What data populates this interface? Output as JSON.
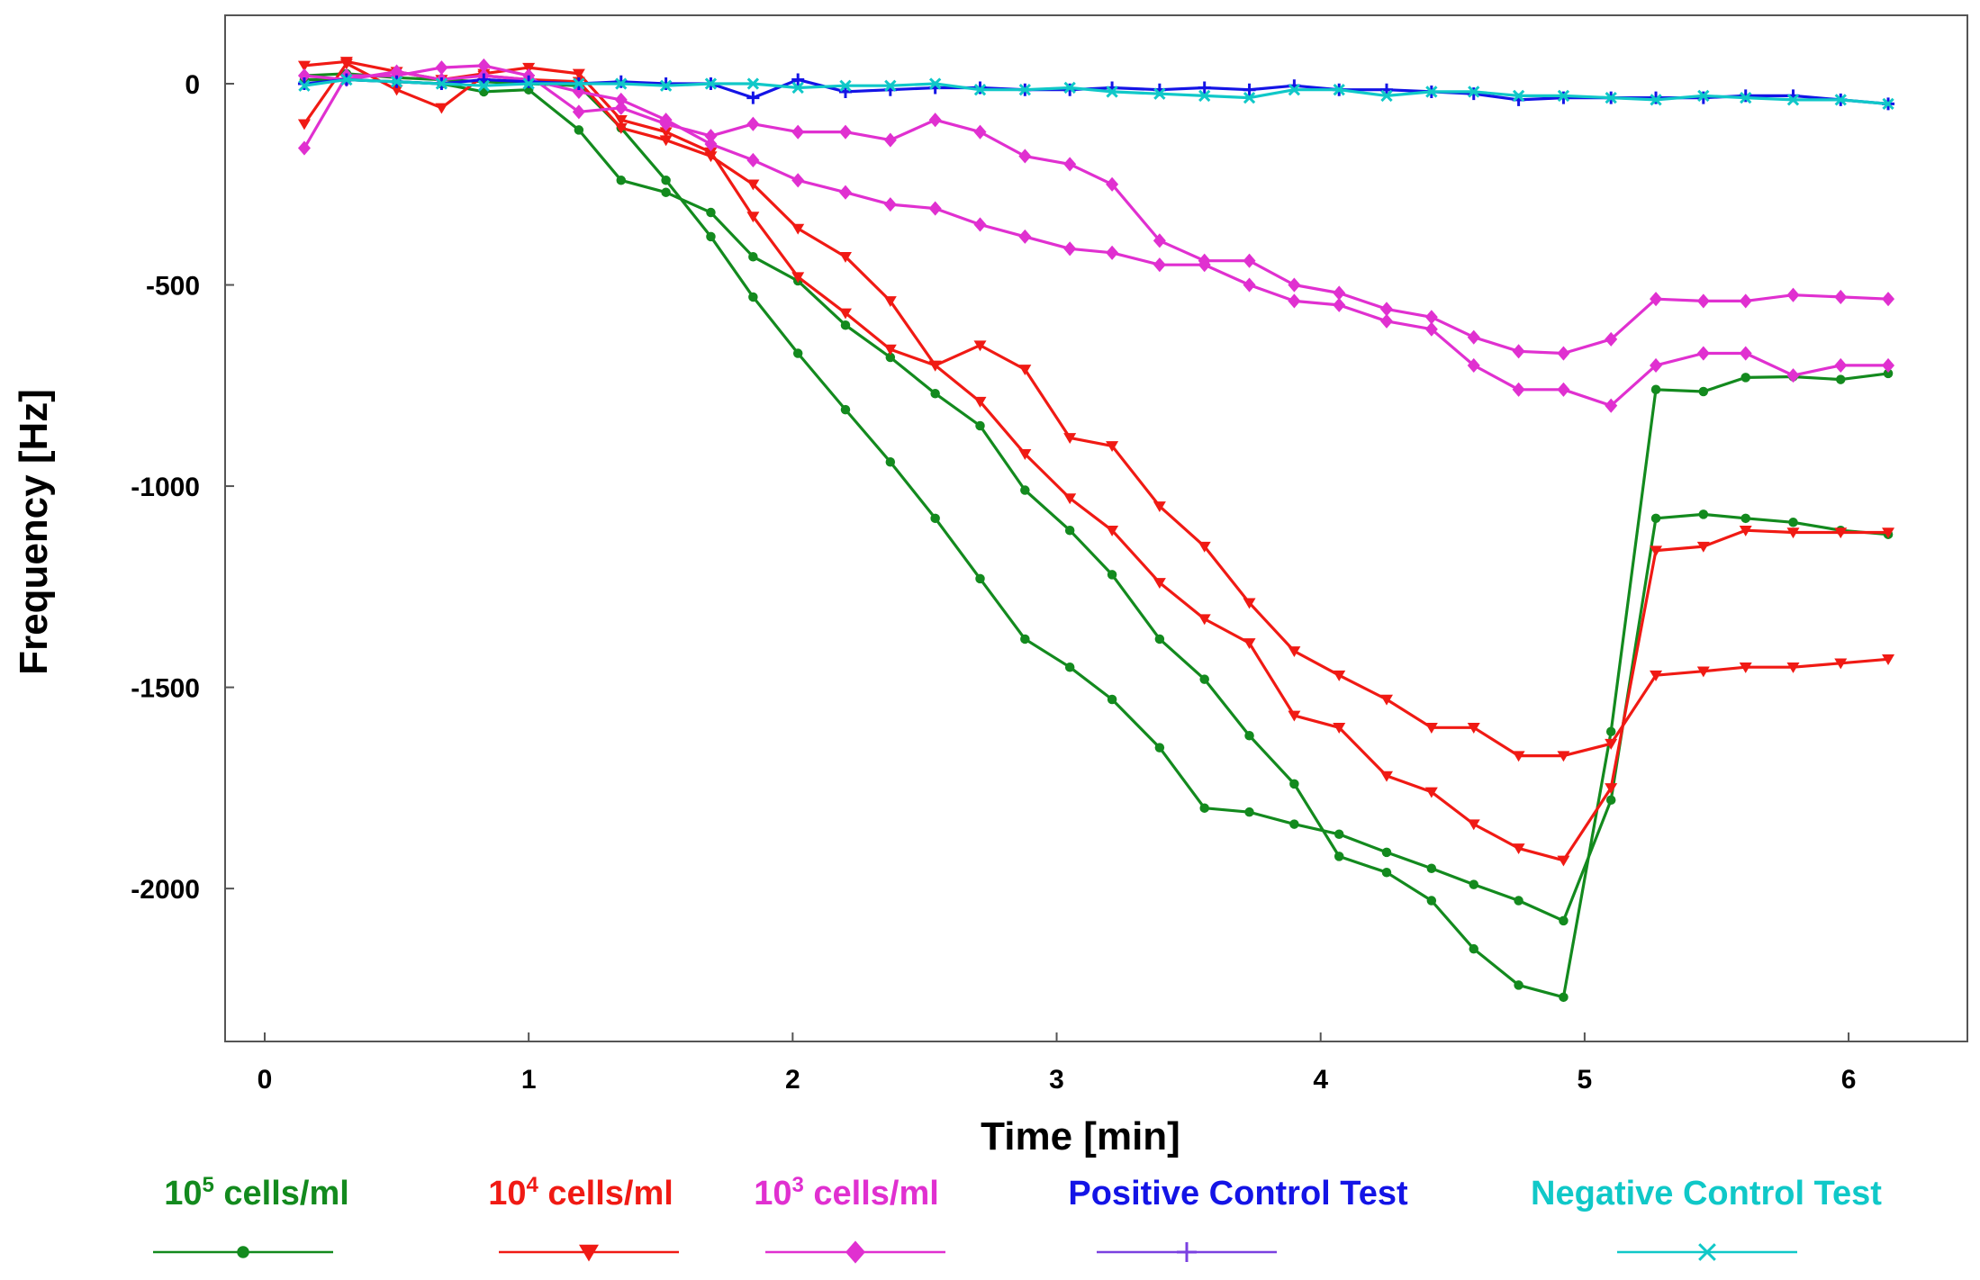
{
  "chart_data": {
    "type": "line",
    "xlabel": "Time [min]",
    "ylabel": "Frequency [Hz]",
    "xlim": [
      -0.15,
      6.45
    ],
    "ylim": [
      -2380,
      170
    ],
    "xticks": [
      "0",
      "1",
      "2",
      "3",
      "4",
      "5",
      "6"
    ],
    "xtick_values": [
      0,
      1,
      2,
      3,
      4,
      5,
      6
    ],
    "yticks": [
      "0",
      "-500",
      "-1000",
      "-1500",
      "-2000"
    ],
    "ytick_values": [
      0,
      -500,
      -1000,
      -1500,
      -2000
    ],
    "grid": false,
    "legend_position": "bottom",
    "legend": [
      {
        "label_base": "10",
        "label_sup": "5",
        "label_rest": " cells/ml",
        "color": "#138a1e",
        "line_color": "#138a1e",
        "marker": "circle"
      },
      {
        "label_base": "10",
        "label_sup": "4",
        "label_rest": " cells/ml",
        "color": "#f01a14",
        "line_color": "#f01a14",
        "marker": "triangle-down"
      },
      {
        "label_base": "10",
        "label_sup": "3",
        "label_rest": " cells/ml",
        "color": "#e030d0",
        "line_color": "#e030d0",
        "marker": "diamond"
      },
      {
        "label_base": "Positive Control Test",
        "label_sup": "",
        "label_rest": "",
        "color": "#1414e6",
        "line_color": "#7a40e0",
        "marker": "plus"
      },
      {
        "label_base": "Negative Control Test",
        "label_sup": "",
        "label_rest": "",
        "color": "#10c8c8",
        "line_color": "#10c8c8",
        "marker": "x"
      }
    ],
    "x": [
      0.15,
      0.31,
      0.5,
      0.67,
      0.83,
      1.0,
      1.19,
      1.35,
      1.52,
      1.69,
      1.85,
      2.02,
      2.2,
      2.37,
      2.54,
      2.71,
      2.88,
      3.05,
      3.21,
      3.39,
      3.56,
      3.73,
      3.9,
      4.07,
      4.25,
      4.42,
      4.58,
      4.75,
      4.92,
      5.1,
      5.27,
      5.45,
      5.61,
      5.79,
      5.97,
      6.15
    ],
    "series": [
      {
        "name": "10^5 cells/ml A",
        "group": 0,
        "values": [
          10,
          10,
          5,
          0,
          -20,
          -15,
          -115,
          -240,
          -270,
          -320,
          -430,
          -490,
          -600,
          -680,
          -770,
          -850,
          -1010,
          -1110,
          -1220,
          -1380,
          -1480,
          -1620,
          -1740,
          -1920,
          -1960,
          -2030,
          -2150,
          -2240,
          -2270,
          -1610,
          -760,
          -765,
          -730,
          -728,
          -735,
          -720
        ]
      },
      {
        "name": "10^5 cells/ml B",
        "group": 0,
        "values": [
          20,
          25,
          15,
          10,
          5,
          0,
          -5,
          -110,
          -240,
          -380,
          -530,
          -670,
          -810,
          -940,
          -1080,
          -1230,
          -1380,
          -1450,
          -1530,
          -1650,
          -1800,
          -1810,
          -1840,
          -1865,
          -1910,
          -1950,
          -1990,
          -2030,
          -2080,
          -1780,
          -1080,
          -1070,
          -1080,
          -1090,
          -1110,
          -1120
        ]
      },
      {
        "name": "10^4 cells/ml A",
        "group": 1,
        "values": [
          -100,
          50,
          -15,
          -60,
          20,
          10,
          5,
          -110,
          -140,
          -180,
          -250,
          -360,
          -430,
          -540,
          -700,
          -650,
          -710,
          -880,
          -900,
          -1050,
          -1150,
          -1290,
          -1410,
          -1470,
          -1530,
          -1600,
          -1600,
          -1670,
          -1670,
          -1640,
          -1470,
          -1460,
          -1450,
          -1450,
          -1440,
          -1430
        ]
      },
      {
        "name": "10^4 cells/ml B",
        "group": 1,
        "values": [
          45,
          55,
          30,
          10,
          25,
          40,
          25,
          -90,
          -120,
          -170,
          -330,
          -480,
          -570,
          -660,
          -700,
          -790,
          -920,
          -1030,
          -1110,
          -1240,
          -1330,
          -1390,
          -1570,
          -1600,
          -1720,
          -1760,
          -1840,
          -1900,
          -1930,
          -1750,
          -1160,
          -1150,
          -1110,
          -1115,
          -1115,
          -1115
        ]
      },
      {
        "name": "10^3 cells/ml A",
        "group": 2,
        "values": [
          -160,
          20,
          20,
          40,
          45,
          20,
          -70,
          -60,
          -100,
          -130,
          -100,
          -120,
          -120,
          -140,
          -90,
          -120,
          -180,
          -200,
          -250,
          -390,
          -440,
          -440,
          -500,
          -520,
          -560,
          -580,
          -630,
          -665,
          -670,
          -635,
          -535,
          -540,
          -540,
          -525,
          -530,
          -535
        ]
      },
      {
        "name": "10^3 cells/ml B",
        "group": 2,
        "values": [
          20,
          10,
          30,
          10,
          20,
          10,
          -20,
          -40,
          -90,
          -150,
          -190,
          -240,
          -270,
          -300,
          -310,
          -350,
          -380,
          -410,
          -420,
          -450,
          -450,
          -500,
          -540,
          -550,
          -590,
          -610,
          -700,
          -760,
          -760,
          -800,
          -700,
          -670,
          -670,
          -725,
          -700,
          -700
        ]
      },
      {
        "name": "Positive Control Test",
        "group": 3,
        "values": [
          0,
          10,
          5,
          0,
          10,
          5,
          0,
          5,
          0,
          0,
          -35,
          10,
          -20,
          -15,
          -10,
          -10,
          -15,
          -15,
          -10,
          -15,
          -10,
          -15,
          -5,
          -15,
          -15,
          -20,
          -25,
          -40,
          -35,
          -35,
          -35,
          -35,
          -30,
          -30,
          -40,
          -50
        ]
      },
      {
        "name": "Negative Control Test",
        "group": 4,
        "values": [
          -5,
          10,
          5,
          0,
          -5,
          0,
          0,
          0,
          -5,
          0,
          0,
          -10,
          -5,
          -5,
          0,
          -15,
          -15,
          -10,
          -20,
          -25,
          -30,
          -35,
          -15,
          -15,
          -30,
          -20,
          -20,
          -30,
          -30,
          -35,
          -40,
          -30,
          -35,
          -40,
          -40,
          -50
        ]
      }
    ]
  }
}
